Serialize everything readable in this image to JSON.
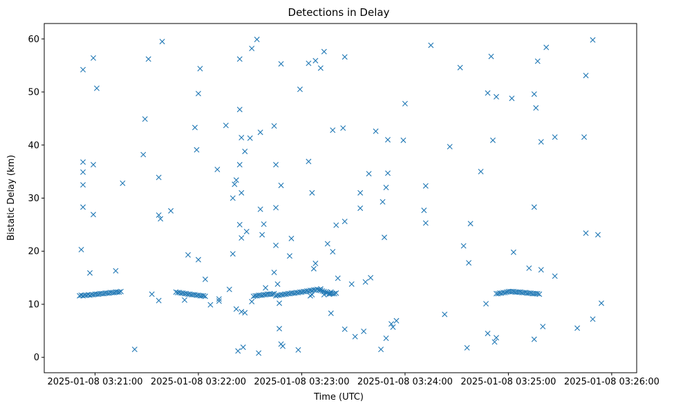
{
  "chart_data": {
    "type": "scatter",
    "title": "Detections in Delay",
    "xlabel": "Time (UTC)",
    "ylabel": "Bistatic Delay (km)",
    "x_unit": "seconds after 2025-01-08 03:21:00",
    "xlim": [
      -29.5,
      314.5
    ],
    "ylim": [
      -2.9,
      62.9
    ],
    "grid": false,
    "marker": "x",
    "color": "#1f77b4",
    "x_ticks": [
      {
        "value": 0,
        "label": "2025-01-08 03:21:00"
      },
      {
        "value": 60,
        "label": "2025-01-08 03:22:00"
      },
      {
        "value": 120,
        "label": "2025-01-08 03:23:00"
      },
      {
        "value": 180,
        "label": "2025-01-08 03:24:00"
      },
      {
        "value": 240,
        "label": "2025-01-08 03:25:00"
      },
      {
        "value": 300,
        "label": "2025-01-08 03:26:00"
      }
    ],
    "y_ticks": [
      {
        "value": 0,
        "label": "0"
      },
      {
        "value": 10,
        "label": "10"
      },
      {
        "value": 20,
        "label": "20"
      },
      {
        "value": 30,
        "label": "30"
      },
      {
        "value": 40,
        "label": "40"
      },
      {
        "value": 50,
        "label": "50"
      },
      {
        "value": 60,
        "label": "60"
      }
    ],
    "series": [
      {
        "name": "detections",
        "points": [
          [
            -9,
            11.6
          ],
          [
            -8,
            11.7
          ],
          [
            -7,
            11.6
          ],
          [
            -6,
            11.7
          ],
          [
            -5,
            11.7
          ],
          [
            -4,
            11.8
          ],
          [
            -3,
            11.7
          ],
          [
            -2,
            11.8
          ],
          [
            -1,
            11.8
          ],
          [
            0,
            11.9
          ],
          [
            1,
            11.9
          ],
          [
            2,
            11.9
          ],
          [
            3,
            12.0
          ],
          [
            4,
            12.0
          ],
          [
            5,
            12.0
          ],
          [
            6,
            12.1
          ],
          [
            7,
            12.1
          ],
          [
            8,
            12.1
          ],
          [
            9,
            12.2
          ],
          [
            10,
            12.2
          ],
          [
            11,
            12.2
          ],
          [
            12,
            12.3
          ],
          [
            13,
            12.3
          ],
          [
            14,
            12.3
          ],
          [
            15,
            12.4
          ],
          [
            47,
            12.3
          ],
          [
            48,
            12.2
          ],
          [
            49,
            12.2
          ],
          [
            50,
            12.1
          ],
          [
            51,
            12.1
          ],
          [
            52,
            12.0
          ],
          [
            53,
            12.0
          ],
          [
            54,
            11.9
          ],
          [
            55,
            11.9
          ],
          [
            56,
            11.8
          ],
          [
            57,
            11.8
          ],
          [
            58,
            11.8
          ],
          [
            59,
            11.7
          ],
          [
            60,
            11.7
          ],
          [
            61,
            11.6
          ],
          [
            62,
            11.6
          ],
          [
            63,
            11.6
          ],
          [
            64,
            11.5
          ],
          [
            105,
            11.6
          ],
          [
            106,
            11.7
          ],
          [
            107,
            11.7
          ],
          [
            108,
            11.8
          ],
          [
            109,
            11.8
          ],
          [
            110,
            11.9
          ],
          [
            111,
            11.9
          ],
          [
            112,
            12.0
          ],
          [
            113,
            12.0
          ],
          [
            114,
            12.1
          ],
          [
            115,
            12.1
          ],
          [
            116,
            12.1
          ],
          [
            117,
            12.2
          ],
          [
            118,
            12.2
          ],
          [
            119,
            12.3
          ],
          [
            120,
            12.3
          ],
          [
            121,
            12.4
          ],
          [
            122,
            12.4
          ],
          [
            123,
            12.5
          ],
          [
            124,
            12.5
          ],
          [
            125,
            12.6
          ],
          [
            126,
            12.6
          ],
          [
            127,
            12.7
          ],
          [
            128,
            12.7
          ],
          [
            129,
            12.8
          ],
          [
            130,
            12.7
          ],
          [
            131,
            12.6
          ],
          [
            132,
            12.5
          ],
          [
            133,
            12.4
          ],
          [
            134,
            12.3
          ],
          [
            135,
            12.2
          ],
          [
            136,
            12.1
          ],
          [
            137,
            12.0
          ],
          [
            138,
            12.0
          ],
          [
            139,
            12.0
          ],
          [
            140,
            12.1
          ],
          [
            92,
            11.5
          ],
          [
            93,
            11.6
          ],
          [
            94,
            11.6
          ],
          [
            95,
            11.7
          ],
          [
            96,
            11.7
          ],
          [
            97,
            11.7
          ],
          [
            98,
            11.8
          ],
          [
            99,
            11.8
          ],
          [
            100,
            11.9
          ],
          [
            101,
            11.9
          ],
          [
            102,
            11.9
          ],
          [
            103,
            11.9
          ],
          [
            104,
            12.0
          ],
          [
            126,
            11.8
          ],
          [
            131,
            12.9
          ],
          [
            133,
            11.8
          ],
          [
            137,
            12.3
          ],
          [
            233,
            12.0
          ],
          [
            234,
            12.0
          ],
          [
            235,
            12.1
          ],
          [
            236,
            12.1
          ],
          [
            237,
            12.2
          ],
          [
            238,
            12.2
          ],
          [
            239,
            12.3
          ],
          [
            240,
            12.4
          ],
          [
            241,
            12.4
          ],
          [
            242,
            12.4
          ],
          [
            243,
            12.4
          ],
          [
            244,
            12.3
          ],
          [
            245,
            12.3
          ],
          [
            246,
            12.3
          ],
          [
            247,
            12.3
          ],
          [
            248,
            12.2
          ],
          [
            249,
            12.2
          ],
          [
            250,
            12.2
          ],
          [
            251,
            12.1
          ],
          [
            252,
            12.1
          ],
          [
            253,
            12.1
          ],
          [
            254,
            12.0
          ],
          [
            255,
            12.0
          ],
          [
            256,
            12.0
          ],
          [
            257,
            12.0
          ],
          [
            258,
            11.9
          ],
          [
            -7,
            54.2
          ],
          [
            -1,
            56.4
          ],
          [
            1,
            50.7
          ],
          [
            -7,
            36.8
          ],
          [
            -1,
            36.3
          ],
          [
            -7,
            34.9
          ],
          [
            -7,
            32.5
          ],
          [
            -7,
            28.3
          ],
          [
            -1,
            26.9
          ],
          [
            -8,
            20.3
          ],
          [
            -3,
            15.9
          ],
          [
            12,
            16.3
          ],
          [
            16,
            32.8
          ],
          [
            23,
            1.5
          ],
          [
            28,
            38.2
          ],
          [
            29,
            44.9
          ],
          [
            31,
            56.2
          ],
          [
            33,
            11.9
          ],
          [
            37,
            10.7
          ],
          [
            37,
            33.9
          ],
          [
            37,
            26.8
          ],
          [
            38,
            26.1
          ],
          [
            39,
            59.5
          ],
          [
            44,
            27.6
          ],
          [
            52,
            10.8
          ],
          [
            54,
            19.3
          ],
          [
            58,
            43.3
          ],
          [
            59,
            39.1
          ],
          [
            60,
            18.4
          ],
          [
            60,
            49.7
          ],
          [
            61,
            54.4
          ],
          [
            64,
            14.7
          ],
          [
            67,
            9.9
          ],
          [
            71,
            35.4
          ],
          [
            72,
            10.6
          ],
          [
            72,
            11.0
          ],
          [
            76,
            43.7
          ],
          [
            78,
            12.8
          ],
          [
            80,
            19.5
          ],
          [
            80,
            30.0
          ],
          [
            82,
            33.4
          ],
          [
            81,
            32.6
          ],
          [
            82,
            9.1
          ],
          [
            83,
            1.2
          ],
          [
            84,
            46.7
          ],
          [
            84,
            25.0
          ],
          [
            84,
            56.2
          ],
          [
            84,
            36.3
          ],
          [
            85,
            41.4
          ],
          [
            85,
            31.0
          ],
          [
            85,
            22.5
          ],
          [
            85,
            8.6
          ],
          [
            86,
            1.9
          ],
          [
            87,
            8.4
          ],
          [
            87,
            38.8
          ],
          [
            88,
            23.7
          ],
          [
            90,
            41.3
          ],
          [
            91,
            10.5
          ],
          [
            91,
            58.2
          ],
          [
            94,
            59.9
          ],
          [
            95,
            0.8
          ],
          [
            96,
            27.9
          ],
          [
            96,
            42.4
          ],
          [
            97,
            23.1
          ],
          [
            98,
            25.1
          ],
          [
            99,
            13.1
          ],
          [
            104,
            16.0
          ],
          [
            104,
            43.6
          ],
          [
            105,
            28.2
          ],
          [
            105,
            36.3
          ],
          [
            105,
            21.1
          ],
          [
            106,
            13.8
          ],
          [
            107,
            10.2
          ],
          [
            107,
            5.4
          ],
          [
            108,
            2.5
          ],
          [
            108,
            32.4
          ],
          [
            108,
            55.3
          ],
          [
            109,
            2.1
          ],
          [
            113,
            19.1
          ],
          [
            114,
            22.4
          ],
          [
            118,
            1.4
          ],
          [
            119,
            50.5
          ],
          [
            124,
            55.4
          ],
          [
            124,
            36.9
          ],
          [
            125,
            11.6
          ],
          [
            126,
            31.0
          ],
          [
            127,
            16.7
          ],
          [
            128,
            55.9
          ],
          [
            128,
            17.7
          ],
          [
            131,
            54.5
          ],
          [
            133,
            57.6
          ],
          [
            135,
            21.4
          ],
          [
            136,
            11.9
          ],
          [
            137,
            8.3
          ],
          [
            138,
            42.8
          ],
          [
            138,
            19.9
          ],
          [
            140,
            24.9
          ],
          [
            141,
            14.9
          ],
          [
            144,
            43.2
          ],
          [
            145,
            56.6
          ],
          [
            145,
            25.6
          ],
          [
            145,
            5.3
          ],
          [
            149,
            13.8
          ],
          [
            151,
            3.9
          ],
          [
            154,
            31.0
          ],
          [
            154,
            28.1
          ],
          [
            156,
            4.9
          ],
          [
            157,
            14.2
          ],
          [
            159,
            34.6
          ],
          [
            160,
            15.0
          ],
          [
            163,
            42.6
          ],
          [
            166,
            1.5
          ],
          [
            167,
            29.3
          ],
          [
            168,
            22.6
          ],
          [
            169,
            32.0
          ],
          [
            169,
            3.6
          ],
          [
            170,
            41.0
          ],
          [
            170,
            34.7
          ],
          [
            172,
            6.3
          ],
          [
            173,
            5.7
          ],
          [
            175,
            6.9
          ],
          [
            179,
            40.9
          ],
          [
            180,
            47.8
          ],
          [
            191,
            27.7
          ],
          [
            192,
            32.3
          ],
          [
            192,
            25.3
          ],
          [
            195,
            58.8
          ],
          [
            203,
            8.1
          ],
          [
            206,
            39.7
          ],
          [
            212,
            54.6
          ],
          [
            214,
            21.0
          ],
          [
            216,
            1.8
          ],
          [
            217,
            17.8
          ],
          [
            218,
            25.2
          ],
          [
            224,
            35.0
          ],
          [
            228,
            49.8
          ],
          [
            227,
            10.1
          ],
          [
            228,
            4.5
          ],
          [
            230,
            56.7
          ],
          [
            231,
            40.9
          ],
          [
            232,
            2.9
          ],
          [
            233,
            3.7
          ],
          [
            233,
            49.1
          ],
          [
            242,
            48.8
          ],
          [
            243,
            19.8
          ],
          [
            252,
            16.8
          ],
          [
            255,
            28.3
          ],
          [
            255,
            49.6
          ],
          [
            255,
            3.4
          ],
          [
            256,
            47.0
          ],
          [
            257,
            55.8
          ],
          [
            259,
            16.5
          ],
          [
            259,
            40.6
          ],
          [
            260,
            5.8
          ],
          [
            262,
            58.4
          ],
          [
            267,
            41.5
          ],
          [
            267,
            15.3
          ],
          [
            280,
            5.5
          ],
          [
            284,
            41.5
          ],
          [
            285,
            53.1
          ],
          [
            285,
            23.4
          ],
          [
            289,
            59.8
          ],
          [
            289,
            7.2
          ],
          [
            292,
            23.1
          ],
          [
            294,
            10.2
          ]
        ]
      }
    ]
  }
}
